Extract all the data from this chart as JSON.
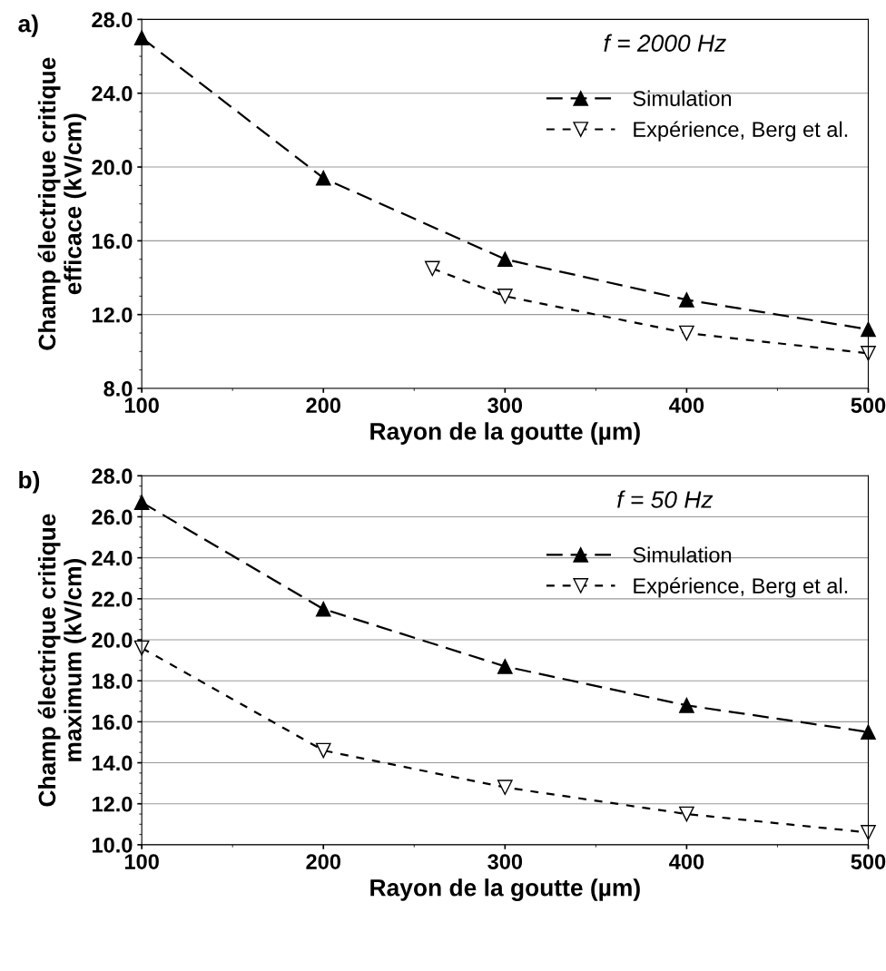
{
  "chart_data": [
    {
      "type": "line",
      "title": "a)",
      "xlabel": "Rayon de la goutte (µm)",
      "ylabel": "Champ électrique critique\nefficace (kV/cm)",
      "annotations": [
        "f = 2000 Hz"
      ],
      "xlim": [
        100,
        500
      ],
      "xticks": [
        100,
        200,
        300,
        400,
        500
      ],
      "ylim": [
        8,
        28
      ],
      "yticks": [
        {
          "value": 8,
          "label": "8.0"
        },
        {
          "value": 12,
          "label": "12.0"
        },
        {
          "value": 16,
          "label": "16.0"
        },
        {
          "value": 20,
          "label": "20.0"
        },
        {
          "value": 24,
          "label": "24.0"
        },
        {
          "value": 28,
          "label": "28.0"
        }
      ],
      "grid": "y",
      "legend": "top right",
      "series": [
        {
          "name": "Simulation",
          "color": "#000000",
          "marker": "triangle",
          "line_style": "dashed",
          "x": [
            100,
            200,
            300,
            400,
            500
          ],
          "values": [
            27.0,
            19.4,
            15.0,
            12.8,
            11.2
          ]
        },
        {
          "name": "Expérience, Berg et al.",
          "color": "#000000",
          "marker": "triangle_down",
          "line_style": "dotted",
          "x": [
            260,
            300,
            400,
            500
          ],
          "values": [
            14.5,
            13.0,
            11.0,
            9.9
          ]
        }
      ]
    },
    {
      "type": "line",
      "title": "b)",
      "xlabel": "Rayon de la goutte (µm)",
      "ylabel": "Champ électrique critique\nmaximum (kV/cm)",
      "annotations": [
        "f = 50 Hz"
      ],
      "xlim": [
        100,
        500
      ],
      "xticks": [
        100,
        200,
        300,
        400,
        500
      ],
      "ylim": [
        10,
        28
      ],
      "yticks": [
        {
          "value": 10,
          "label": "10.0"
        },
        {
          "value": 12,
          "label": "12.0"
        },
        {
          "value": 14,
          "label": "14.0"
        },
        {
          "value": 16,
          "label": "16.0"
        },
        {
          "value": 18,
          "label": "18.0"
        },
        {
          "value": 20,
          "label": "20.0"
        },
        {
          "value": 22,
          "label": "22.0"
        },
        {
          "value": 24,
          "label": "24.0"
        },
        {
          "value": 26,
          "label": "26.0"
        },
        {
          "value": 28,
          "label": "28.0"
        }
      ],
      "grid": "y",
      "legend": "top right",
      "series": [
        {
          "name": "Simulation",
          "color": "#000000",
          "marker": "triangle",
          "line_style": "dashed",
          "x": [
            100,
            200,
            300,
            400,
            500
          ],
          "values": [
            26.7,
            21.5,
            18.7,
            16.8,
            15.5
          ]
        },
        {
          "name": "Expérience, Berg et al.",
          "color": "#000000",
          "marker": "triangle_down",
          "line_style": "dotted",
          "x": [
            100,
            200,
            300,
            400,
            500
          ],
          "values": [
            19.6,
            14.6,
            12.8,
            11.5,
            10.6
          ]
        }
      ]
    }
  ]
}
